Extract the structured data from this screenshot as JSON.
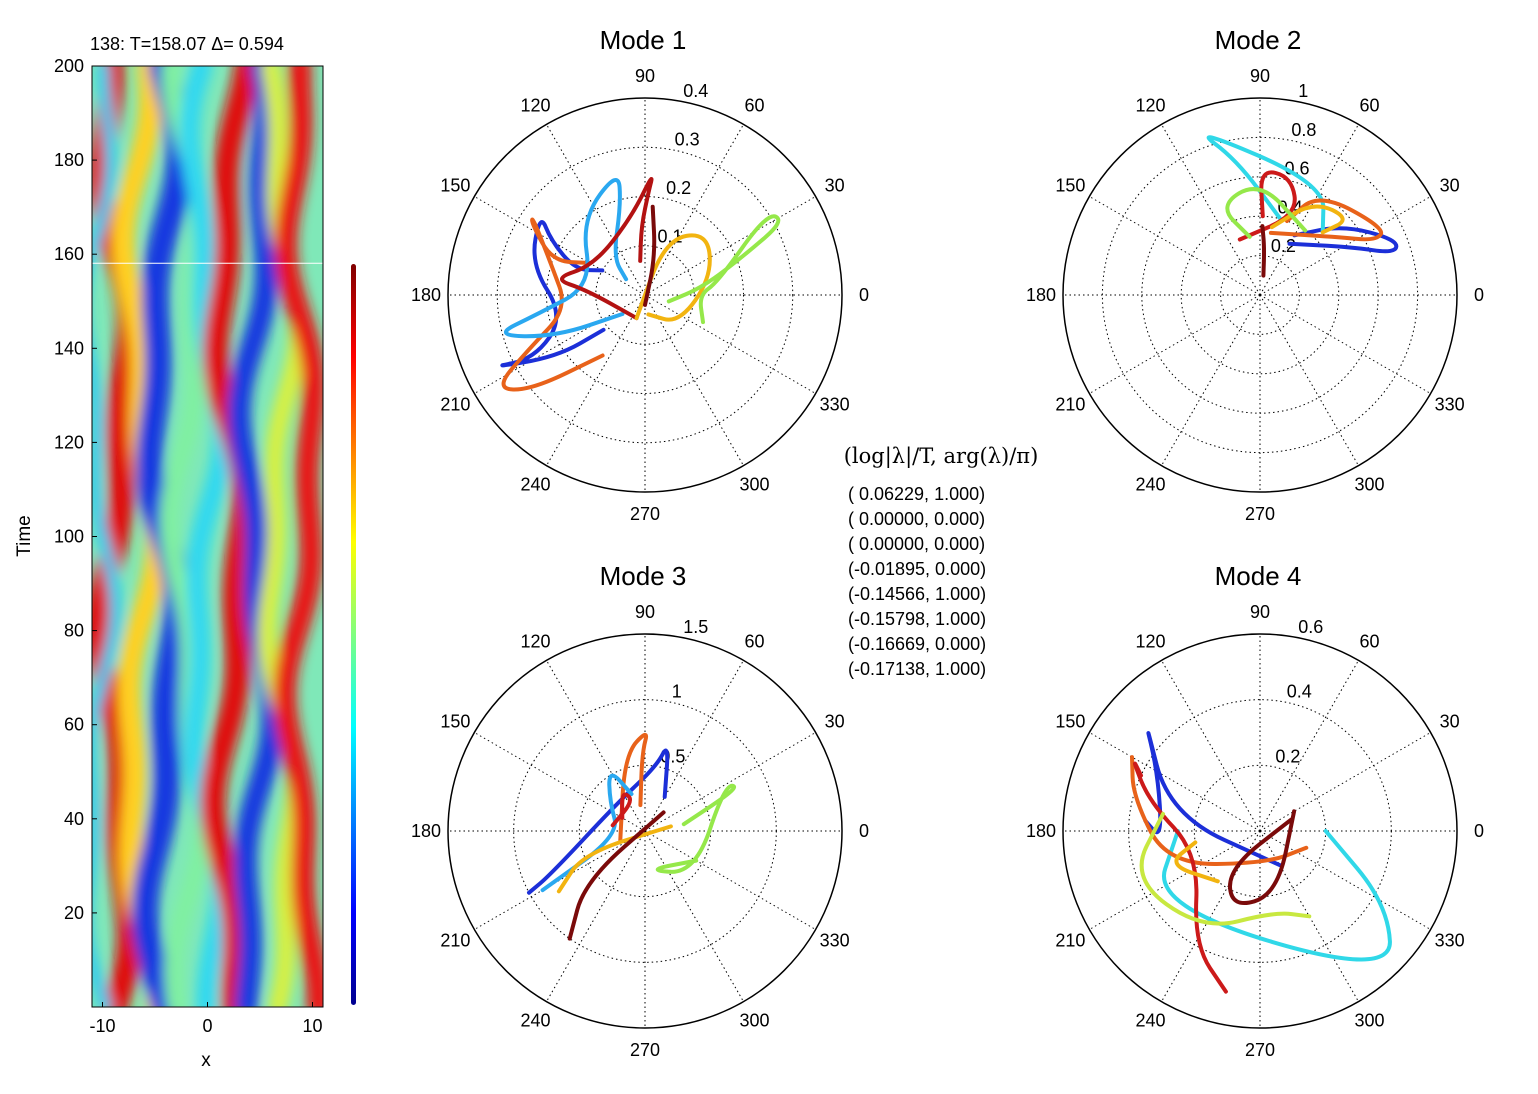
{
  "chart_data": [
    {
      "type": "heatmap",
      "title": "138: T=158.07 Δ=  0.594",
      "xlabel": "x",
      "ylabel": "Time",
      "xlim": [
        -11,
        11
      ],
      "ylim": [
        0,
        200
      ],
      "xticks": [
        -10,
        0,
        10
      ],
      "yticks": [
        20,
        40,
        60,
        80,
        100,
        120,
        140,
        160,
        180,
        200
      ],
      "marker_time": 158.07,
      "colormap": "jet",
      "colorbar": true
    },
    {
      "type": "scatter",
      "subtype": "polar",
      "title": "Mode 1",
      "angle_ticks": [
        0,
        30,
        60,
        90,
        120,
        150,
        180,
        210,
        240,
        270,
        300,
        330
      ],
      "radial_ticks": [
        "0.1",
        "0.2",
        "0.3",
        "0.4"
      ],
      "rmax": 0.4,
      "series": [
        {
          "color": "#1c2fd8",
          "r": [
            0.1,
            0.15,
            0.22,
            0.27,
            0.24,
            0.17,
            0.26,
            0.35,
            0.22,
            0.11
          ],
          "theta": [
            150,
            160,
            150,
            142,
            165,
            195,
            210,
            205,
            215,
            220
          ]
        },
        {
          "color": "#e8621a",
          "r": [
            0.13,
            0.2,
            0.27,
            0.28,
            0.2,
            0.16,
            0.26,
            0.36,
            0.3,
            0.15
          ],
          "theta": [
            150,
            160,
            148,
            145,
            162,
            190,
            205,
            212,
            220,
            235
          ]
        },
        {
          "color": "#2aa8f0",
          "r": [
            0.05,
            0.1,
            0.19,
            0.26,
            0.2,
            0.11,
            0.22,
            0.32,
            0.2,
            0.06
          ],
          "theta": [
            140,
            130,
            105,
            102,
            130,
            170,
            190,
            195,
            205,
            220
          ]
        },
        {
          "color": "#b31212",
          "r": [
            0.07,
            0.14,
            0.21,
            0.25,
            0.16,
            0.12,
            0.19,
            0.12,
            0.05
          ],
          "theta": [
            98,
            93,
            88,
            86,
            100,
            150,
            170,
            175,
            250
          ]
        },
        {
          "color": "#f2b410",
          "r": [
            0.04,
            0.09,
            0.14,
            0.18,
            0.12,
            0.05
          ],
          "theta": [
            280,
            320,
            15,
            45,
            70,
            250
          ]
        },
        {
          "color": "#95e84a",
          "r": [
            0.05,
            0.12,
            0.22,
            0.32,
            0.3,
            0.15,
            0.11,
            0.13
          ],
          "theta": [
            345,
            8,
            22,
            28,
            34,
            10,
            0,
            335
          ]
        },
        {
          "color": "#7a0a0a",
          "r": [
            0.02,
            0.08,
            0.18
          ],
          "theta": [
            270,
            75,
            85
          ]
        }
      ]
    },
    {
      "type": "scatter",
      "subtype": "polar",
      "title": "Mode 2",
      "angle_ticks": [
        0,
        30,
        60,
        90,
        120,
        150,
        180,
        210,
        240,
        270,
        300,
        330
      ],
      "radial_ticks": [
        "0.2",
        "0.4",
        "0.6",
        "0.8",
        "1"
      ],
      "rmax": 1,
      "series": [
        {
          "color": "#1c2fd8",
          "r": [
            0.35,
            0.55,
            0.75,
            0.72,
            0.52,
            0.3
          ],
          "theta": [
            60,
            40,
            22,
            17,
            28,
            60
          ]
        },
        {
          "color": "#30d8e8",
          "r": [
            0.4,
            0.7,
            0.92,
            0.65,
            0.45
          ],
          "theta": [
            75,
            100,
            112,
            60,
            45
          ]
        },
        {
          "color": "#e8621a",
          "r": [
            0.4,
            0.6,
            0.72,
            0.65,
            0.48,
            0.32
          ],
          "theta": [
            70,
            60,
            28,
            25,
            38,
            80
          ]
        },
        {
          "color": "#cc1a1a",
          "r": [
            0.4,
            0.64,
            0.62,
            0.45,
            0.3
          ],
          "theta": [
            88,
            90,
            75,
            65,
            110
          ]
        },
        {
          "color": "#f2b410",
          "r": [
            0.35,
            0.55,
            0.6,
            0.45
          ],
          "theta": [
            80,
            60,
            40,
            45
          ]
        },
        {
          "color": "#95e84a",
          "r": [
            0.3,
            0.5,
            0.58,
            0.4
          ],
          "theta": [
            100,
            115,
            90,
            55
          ]
        },
        {
          "color": "#7a0a0a",
          "r": [
            0.1,
            0.25,
            0.35
          ],
          "theta": [
            80,
            85,
            88
          ]
        }
      ]
    },
    {
      "type": "scatter",
      "subtype": "polar",
      "title": "Mode 3",
      "angle_ticks": [
        0,
        30,
        60,
        90,
        120,
        150,
        180,
        210,
        240,
        270,
        300,
        330
      ],
      "radial_ticks": [
        "0.5",
        "1",
        "1.5"
      ],
      "rmax": 1.5,
      "series": [
        {
          "color": "#1c2fd8",
          "r": [
            0.3,
            0.7,
            0.5,
            0.3,
            0.8,
            1.0
          ],
          "theta": [
            60,
            75,
            80,
            135,
            205,
            208
          ]
        },
        {
          "color": "#e8621a",
          "r": [
            0.2,
            0.6,
            0.78,
            0.6,
            0.2
          ],
          "theta": [
            100,
            92,
            88,
            105,
            200
          ]
        },
        {
          "color": "#2aa8f0",
          "r": [
            0.3,
            0.55,
            0.35,
            0.2,
            0.9
          ],
          "theta": [
            110,
            120,
            140,
            190,
            210
          ]
        },
        {
          "color": "#cc1a1a",
          "r": [
            0.2,
            0.35,
            0.25,
            0.25
          ],
          "theta": [
            150,
            120,
            110,
            170
          ]
        },
        {
          "color": "#f2b410",
          "r": [
            0.2,
            0.5,
            0.8
          ],
          "theta": [
            10,
            200,
            215
          ]
        },
        {
          "color": "#95e84a",
          "r": [
            0.3,
            0.8,
            0.7,
            0.5,
            0.3,
            0.45
          ],
          "theta": [
            10,
            25,
            30,
            320,
            270,
            330
          ]
        },
        {
          "color": "#7a0a0a",
          "r": [
            0.2,
            0.6,
            1.0
          ],
          "theta": [
            45,
            220,
            235
          ]
        }
      ]
    },
    {
      "type": "scatter",
      "subtype": "polar",
      "title": "Mode 4",
      "angle_ticks": [
        0,
        30,
        60,
        90,
        120,
        150,
        180,
        210,
        240,
        270,
        300,
        330
      ],
      "radial_ticks": [
        "0.2",
        "0.4",
        "0.6"
      ],
      "rmax": 0.6,
      "series": [
        {
          "color": "#1c2fd8",
          "r": [
            0.35,
            0.3,
            0.36,
            0.5,
            0.28,
            0.12
          ],
          "theta": [
            175,
            185,
            150,
            135,
            170,
            300
          ]
        },
        {
          "color": "#30d8e8",
          "r": [
            0.25,
            0.4,
            0.6,
            0.45,
            0.2
          ],
          "theta": [
            180,
            215,
            312,
            330,
            0
          ]
        },
        {
          "color": "#e8621a",
          "r": [
            0.45,
            0.4,
            0.3,
            0.1,
            0.15
          ],
          "theta": [
            150,
            165,
            200,
            280,
            340
          ]
        },
        {
          "color": "#cc1a1a",
          "r": [
            0.4,
            0.45,
            0.35,
            0.2,
            0.4,
            0.5
          ],
          "theta": [
            155,
            150,
            165,
            200,
            240,
            258
          ]
        },
        {
          "color": "#f2b410",
          "r": [
            0.2,
            0.3,
            0.2
          ],
          "theta": [
            190,
            200,
            230
          ]
        },
        {
          "color": "#c8e840",
          "r": [
            0.3,
            0.42,
            0.35,
            0.25,
            0.3
          ],
          "theta": [
            170,
            200,
            240,
            280,
            300
          ]
        },
        {
          "color": "#7a0a0a",
          "r": [
            0.1,
            0.15,
            0.25,
            0.2,
            0.12
          ],
          "theta": [
            20,
            230,
            250,
            285,
            30
          ]
        }
      ]
    }
  ],
  "eigen_header": "(log|λ|/T,  arg(λ)/π)",
  "eigen_values": [
    "( 0.06229,    1.000)",
    "( 0.00000,    0.000)",
    "( 0.00000,    0.000)",
    "(-0.01895,    0.000)",
    "(-0.14566,    1.000)",
    "(-0.15798,    1.000)",
    "(-0.16669,    0.000)",
    "(-0.17138,    1.000)"
  ],
  "colors": {
    "axis": "#000000",
    "grid": "#000000",
    "heatmap_background": "#7fe8b8"
  }
}
